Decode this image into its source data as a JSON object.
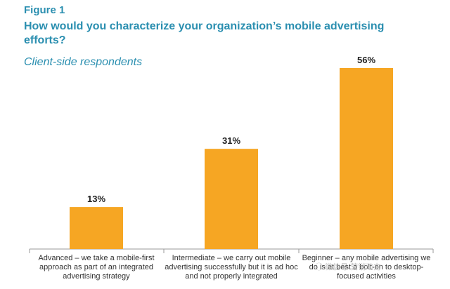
{
  "figure_label": "Figure 1",
  "title": "How would you characterize your organization’s mobile advertising efforts?",
  "subtitle": "Client-side respondents",
  "colors": {
    "bar": "#f6a623",
    "title": "#2b8fb0",
    "axis": "#9a9a9a"
  },
  "chart_data": {
    "type": "bar",
    "categories": [
      "Advanced – we take a mobile-first approach as part of an integrated advertising strategy",
      "Intermediate – we carry out mobile advertising successfully but it is ad hoc and not properly integrated",
      "Beginner – any mobile advertising we do is at best a bolt-on to desktop-focused activities"
    ],
    "values": [
      13,
      31,
      56
    ],
    "data_labels": [
      "13%",
      "31%",
      "56%"
    ],
    "unit": "%",
    "ylim": [
      0,
      60
    ],
    "grid": false,
    "legend": "none"
  },
  "watermark_text": "微信号 营销动力"
}
